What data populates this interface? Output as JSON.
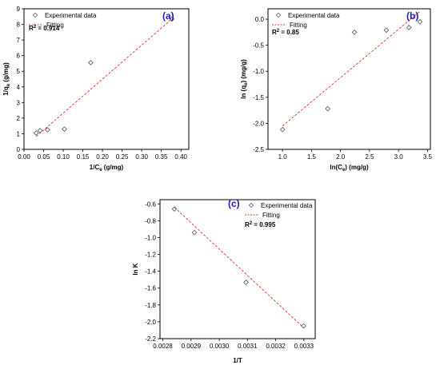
{
  "chart_data": [
    {
      "id": "a",
      "type": "scatter",
      "panel_label": "(a)",
      "xlabel_main": "1/C",
      "xlabel_sub": "e",
      "xlabel_rest": " (g/mg)",
      "ylabel_main": "1/q",
      "ylabel_sub": "e",
      "ylabel_rest": " (g/mg)",
      "xlim": [
        0.0,
        0.42
      ],
      "ylim": [
        0,
        9
      ],
      "xticks": [
        "0.00",
        "0.05",
        "0.10",
        "0.15",
        "0.20",
        "0.25",
        "0.30",
        "0.35",
        "0.40"
      ],
      "xtick_values": [
        0,
        0.05,
        0.1,
        0.15,
        0.2,
        0.25,
        0.3,
        0.35,
        0.4
      ],
      "yticks": [
        "0",
        "1",
        "2",
        "3",
        "4",
        "5",
        "6",
        "7",
        "8",
        "9"
      ],
      "ytick_values": [
        0,
        1,
        2,
        3,
        4,
        5,
        6,
        7,
        8,
        9
      ],
      "legend": {
        "data": "Experimental data",
        "fit": "Fitting",
        "position": "top-left"
      },
      "r2_label": "R",
      "r2_value": " = 0.914",
      "series": [
        {
          "name": "Experimental data",
          "marker": "diamond",
          "x": [
            0.031,
            0.041,
            0.06,
            0.103,
            0.17,
            0.377
          ],
          "y": [
            1.05,
            1.2,
            1.25,
            1.3,
            5.55,
            8.35
          ]
        },
        {
          "name": "Fitting",
          "style": "dashed-line",
          "x": [
            0.031,
            0.377
          ],
          "y": [
            0.82,
            8.35
          ]
        }
      ]
    },
    {
      "id": "b",
      "type": "scatter",
      "panel_label": "(b)",
      "xlabel_main": "ln(C",
      "xlabel_sub": "e",
      "xlabel_rest": ") (mg/g)",
      "ylabel_main": "ln (q",
      "ylabel_sub": "e",
      "ylabel_rest": ") (mg/g)",
      "xlim": [
        0.75,
        3.55
      ],
      "ylim": [
        -2.5,
        0.2
      ],
      "xticks": [
        "1.0",
        "1.5",
        "2.0",
        "2.5",
        "3.0",
        "3.5"
      ],
      "xtick_values": [
        1.0,
        1.5,
        2.0,
        2.5,
        3.0,
        3.5
      ],
      "yticks": [
        "0.0",
        "-0.5",
        "-1.0",
        "-1.5",
        "-2.0",
        "-2.5"
      ],
      "ytick_values": [
        0,
        -0.5,
        -1.0,
        -1.5,
        -2.0,
        -2.5
      ],
      "legend": {
        "data": "Experimental data",
        "fit": "Fitting",
        "position": "top-left"
      },
      "r2_label": "R",
      "r2_value": " = 0.85",
      "series": [
        {
          "name": "Experimental data",
          "marker": "diamond",
          "x": [
            1.0,
            1.78,
            2.24,
            2.79,
            3.18,
            3.37
          ],
          "y": [
            -2.12,
            -1.72,
            -0.25,
            -0.21,
            -0.16,
            -0.05
          ]
        },
        {
          "name": "Fitting",
          "style": "dashed-line",
          "x": [
            1.0,
            3.37
          ],
          "y": [
            -2.05,
            0.15
          ]
        }
      ]
    },
    {
      "id": "c",
      "type": "scatter",
      "panel_label": "(c)",
      "xlabel_main": "1/T",
      "xlabel_sub": "",
      "xlabel_rest": "",
      "ylabel_main": "ln K",
      "ylabel_sub": "",
      "ylabel_rest": "",
      "xlim": [
        0.00279,
        0.00334
      ],
      "ylim": [
        -2.2,
        -0.55
      ],
      "xticks": [
        "0.0028",
        "0.0029",
        "0.0030",
        "0.0031",
        "0.0032",
        "0.0033"
      ],
      "xtick_values": [
        0.0028,
        0.0029,
        0.003,
        0.0031,
        0.0032,
        0.0033
      ],
      "yticks": [
        "-0.6",
        "-0.8",
        "-1.0",
        "-1.2",
        "-1.4",
        "-1.6",
        "-1.8",
        "-2.0",
        "-2.2"
      ],
      "ytick_values": [
        -0.6,
        -0.8,
        -1.0,
        -1.2,
        -1.4,
        -1.6,
        -1.8,
        -2.0,
        -2.2
      ],
      "legend": {
        "data": "Experimental data",
        "fit": "Fitting",
        "position": "top-right"
      },
      "r2_label": "R",
      "r2_value": " = 0.995",
      "series": [
        {
          "name": "Experimental data",
          "marker": "diamond",
          "x": [
            0.002841,
            0.002912,
            0.003095,
            0.003299
          ],
          "y": [
            -0.66,
            -0.94,
            -1.53,
            -2.05
          ]
        },
        {
          "name": "Fitting",
          "style": "dashed-line",
          "x": [
            0.002841,
            0.003299
          ],
          "y": [
            -0.64,
            -2.07
          ]
        }
      ]
    }
  ],
  "colors": {
    "fit_line": "#e8302a",
    "marker": "#555555",
    "axis": "#000000",
    "panel_label": "#1b1bb8"
  }
}
